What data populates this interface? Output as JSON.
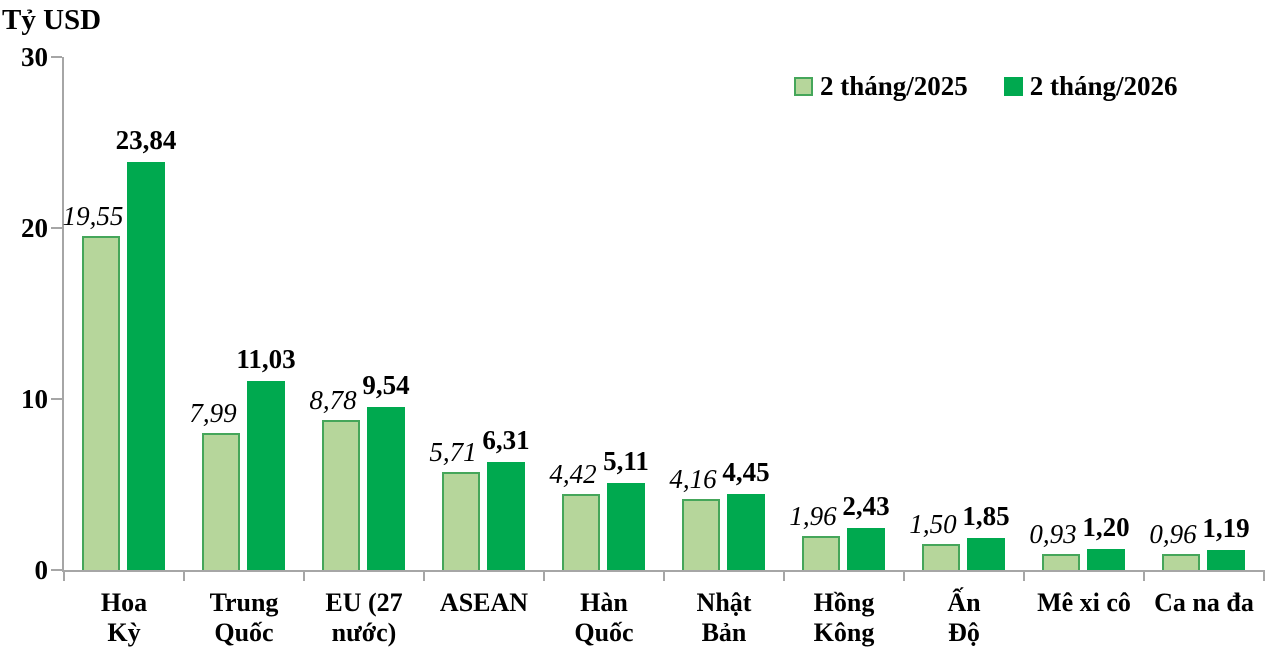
{
  "chart_data": {
    "type": "bar",
    "title": "",
    "unit_label": "Tỷ USD",
    "xlabel": "",
    "ylabel": "Tỷ USD",
    "ylim": [
      0,
      30
    ],
    "yticks": [
      0,
      10,
      20,
      30
    ],
    "grid": false,
    "legend_position": "top-right",
    "categories": [
      "Hoa Kỳ",
      "Trung Quốc",
      "EU (27 nước)",
      "ASEAN",
      "Hàn Quốc",
      "Nhật Bản",
      "Hồng Kông",
      "Ấn Độ",
      "Mê xi cô",
      "Ca na đa"
    ],
    "categories_display": [
      "Hoa\nKỳ",
      "Trung\nQuốc",
      "EU (27\nnước)",
      "ASEAN",
      "Hàn\nQuốc",
      "Nhật\nBản",
      "Hồng\nKông",
      "Ấn\nĐộ",
      "Mê xi cô",
      "Ca na đa"
    ],
    "series": [
      {
        "name": "2 tháng/2025",
        "values": [
          19.55,
          7.99,
          8.78,
          5.71,
          4.42,
          4.16,
          1.96,
          1.5,
          0.93,
          0.96
        ],
        "display_values": [
          "19,55",
          "7,99",
          "8,78",
          "5,71",
          "4,42",
          "4,16",
          "1,96",
          "1,50",
          "0,93",
          "0,96"
        ],
        "fill_color": "#b6d69b",
        "border_color": "#45a65a"
      },
      {
        "name": "2 tháng/2026",
        "values": [
          23.84,
          11.03,
          9.54,
          6.31,
          5.11,
          4.45,
          2.43,
          1.85,
          1.2,
          1.19
        ],
        "display_values": [
          "23,84",
          "11,03",
          "9,54",
          "6,31",
          "5,11",
          "4,45",
          "2,43",
          "1,85",
          "1,20",
          "1,19"
        ],
        "fill_color": "#00a94f",
        "border_color": "#00a94f"
      }
    ],
    "axis_color": "#a6a6a6",
    "text_color": "#000000"
  }
}
